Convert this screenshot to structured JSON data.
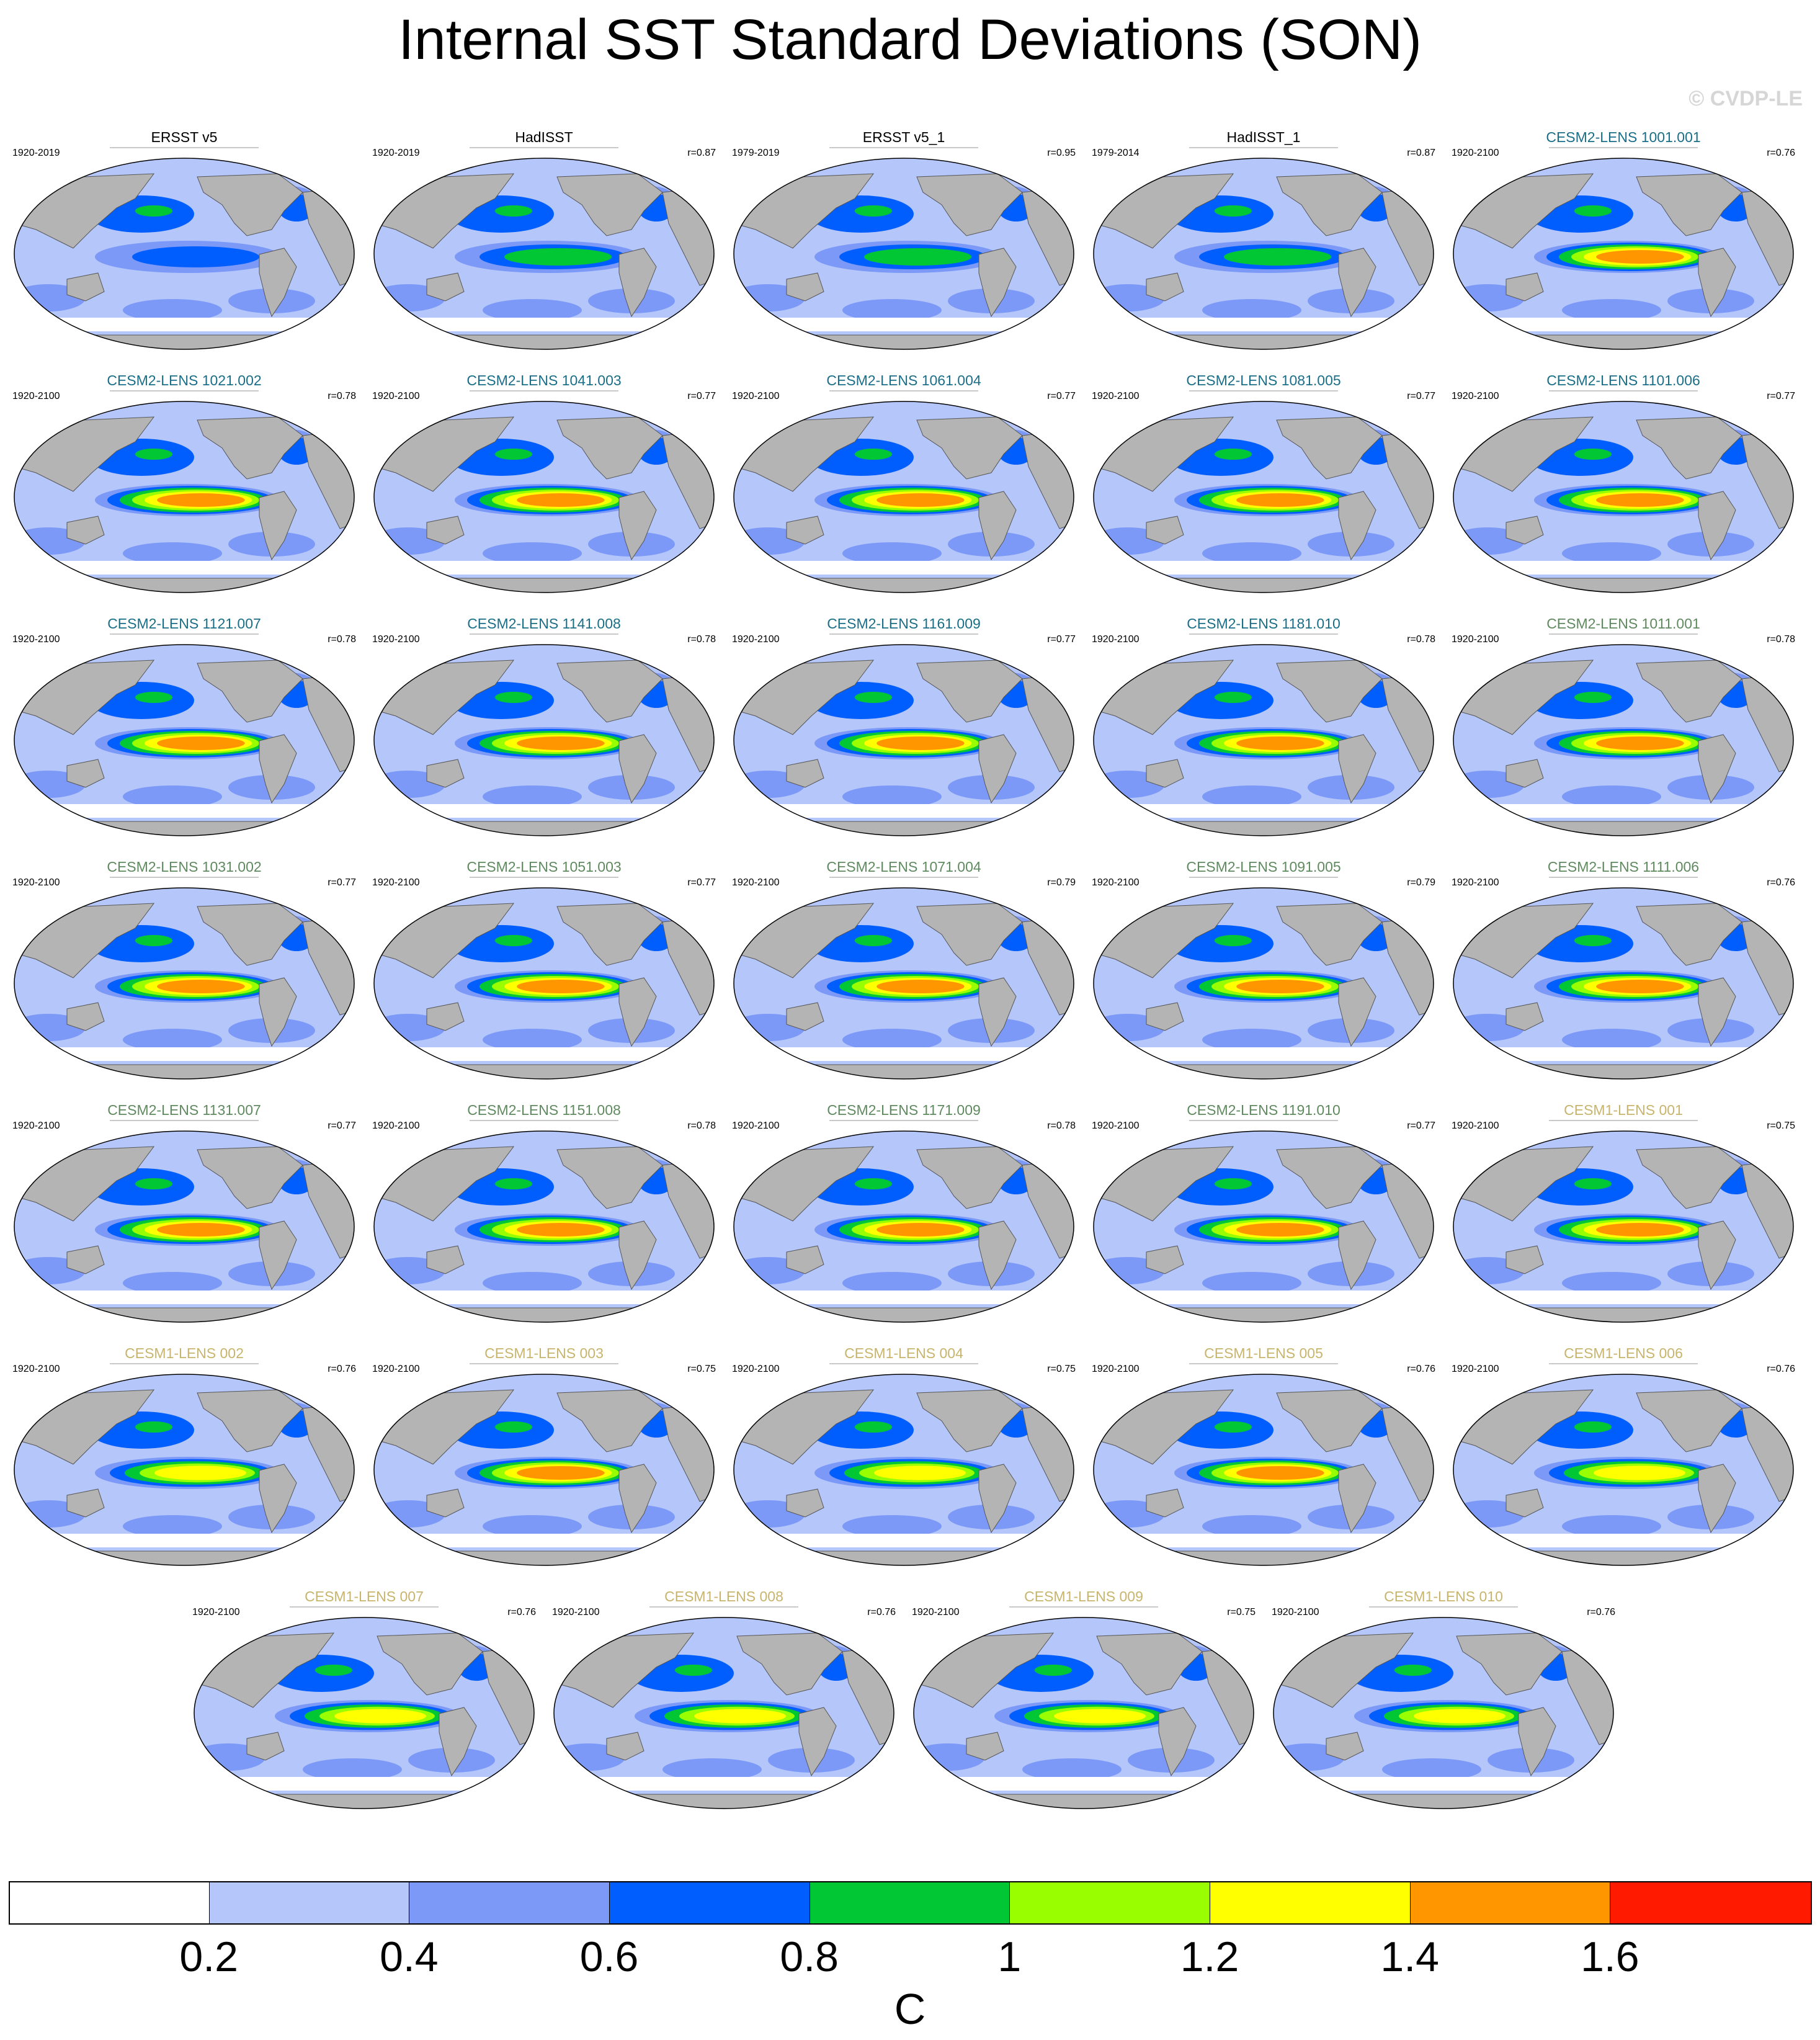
{
  "title": "Internal SST Standard Deviations (SON)",
  "credit": "© CVDP-LE",
  "colors": {
    "obs_title": "#000000",
    "cesm2_a_title": "#1a6e88",
    "cesm2_b_title": "#5f8a5f",
    "cesm1_title": "#c8b46c",
    "land": "#b4b4b4",
    "coast": "#555555"
  },
  "panels": [
    {
      "title": "ERSST v5",
      "years": "1920-2019",
      "r": "",
      "group": "obs",
      "peak": 0.85
    },
    {
      "title": "HadISST",
      "years": "1920-2019",
      "r": "r=0.87",
      "group": "obs",
      "peak": 0.9
    },
    {
      "title": "ERSST v5_1",
      "years": "1979-2019",
      "r": "r=0.95",
      "group": "obs",
      "peak": 0.95
    },
    {
      "title": "HadISST_1",
      "years": "1979-2014",
      "r": "r=0.87",
      "group": "obs",
      "peak": 0.95
    },
    {
      "title": "CESM2-LENS 1001.001",
      "years": "1920-2100",
      "r": "r=0.76",
      "group": "cesm2a",
      "peak": 1.65
    },
    {
      "title": "CESM2-LENS 1021.002",
      "years": "1920-2100",
      "r": "r=0.78",
      "group": "cesm2a",
      "peak": 1.65
    },
    {
      "title": "CESM2-LENS 1041.003",
      "years": "1920-2100",
      "r": "r=0.77",
      "group": "cesm2a",
      "peak": 1.65
    },
    {
      "title": "CESM2-LENS 1061.004",
      "years": "1920-2100",
      "r": "r=0.77",
      "group": "cesm2a",
      "peak": 1.65
    },
    {
      "title": "CESM2-LENS 1081.005",
      "years": "1920-2100",
      "r": "r=0.77",
      "group": "cesm2a",
      "peak": 1.65
    },
    {
      "title": "CESM2-LENS 1101.006",
      "years": "1920-2100",
      "r": "r=0.77",
      "group": "cesm2a",
      "peak": 1.65
    },
    {
      "title": "CESM2-LENS 1121.007",
      "years": "1920-2100",
      "r": "r=0.78",
      "group": "cesm2a",
      "peak": 1.65
    },
    {
      "title": "CESM2-LENS 1141.008",
      "years": "1920-2100",
      "r": "r=0.78",
      "group": "cesm2a",
      "peak": 1.65
    },
    {
      "title": "CESM2-LENS 1161.009",
      "years": "1920-2100",
      "r": "r=0.77",
      "group": "cesm2a",
      "peak": 1.65
    },
    {
      "title": "CESM2-LENS 1181.010",
      "years": "1920-2100",
      "r": "r=0.78",
      "group": "cesm2a",
      "peak": 1.65
    },
    {
      "title": "CESM2-LENS 1011.001",
      "years": "1920-2100",
      "r": "r=0.78",
      "group": "cesm2b",
      "peak": 1.65
    },
    {
      "title": "CESM2-LENS 1031.002",
      "years": "1920-2100",
      "r": "r=0.77",
      "group": "cesm2b",
      "peak": 1.65
    },
    {
      "title": "CESM2-LENS 1051.003",
      "years": "1920-2100",
      "r": "r=0.77",
      "group": "cesm2b",
      "peak": 1.65
    },
    {
      "title": "CESM2-LENS 1071.004",
      "years": "1920-2100",
      "r": "r=0.79",
      "group": "cesm2b",
      "peak": 1.65
    },
    {
      "title": "CESM2-LENS 1091.005",
      "years": "1920-2100",
      "r": "r=0.79",
      "group": "cesm2b",
      "peak": 1.65
    },
    {
      "title": "CESM2-LENS 1111.006",
      "years": "1920-2100",
      "r": "r=0.76",
      "group": "cesm2b",
      "peak": 1.65
    },
    {
      "title": "CESM2-LENS 1131.007",
      "years": "1920-2100",
      "r": "r=0.77",
      "group": "cesm2b",
      "peak": 1.65
    },
    {
      "title": "CESM2-LENS 1151.008",
      "years": "1920-2100",
      "r": "r=0.78",
      "group": "cesm2b",
      "peak": 1.65
    },
    {
      "title": "CESM2-LENS 1171.009",
      "years": "1920-2100",
      "r": "r=0.78",
      "group": "cesm2b",
      "peak": 1.65
    },
    {
      "title": "CESM2-LENS 1191.010",
      "years": "1920-2100",
      "r": "r=0.77",
      "group": "cesm2b",
      "peak": 1.65
    },
    {
      "title": "CESM1-LENS 001",
      "years": "1920-2100",
      "r": "r=0.75",
      "group": "cesm1",
      "peak": 1.65
    },
    {
      "title": "CESM1-LENS 002",
      "years": "1920-2100",
      "r": "r=0.76",
      "group": "cesm1",
      "peak": 1.45
    },
    {
      "title": "CESM1-LENS 003",
      "years": "1920-2100",
      "r": "r=0.75",
      "group": "cesm1",
      "peak": 1.65
    },
    {
      "title": "CESM1-LENS 004",
      "years": "1920-2100",
      "r": "r=0.75",
      "group": "cesm1",
      "peak": 1.45
    },
    {
      "title": "CESM1-LENS 005",
      "years": "1920-2100",
      "r": "r=0.76",
      "group": "cesm1",
      "peak": 1.65
    },
    {
      "title": "CESM1-LENS 006",
      "years": "1920-2100",
      "r": "r=0.76",
      "group": "cesm1",
      "peak": 1.45
    },
    {
      "title": "CESM1-LENS 007",
      "years": "1920-2100",
      "r": "r=0.76",
      "group": "cesm1",
      "peak": 1.45
    },
    {
      "title": "CESM1-LENS 008",
      "years": "1920-2100",
      "r": "r=0.76",
      "group": "cesm1",
      "peak": 1.45
    },
    {
      "title": "CESM1-LENS 009",
      "years": "1920-2100",
      "r": "r=0.75",
      "group": "cesm1",
      "peak": 1.45
    },
    {
      "title": "CESM1-LENS 010",
      "years": "1920-2100",
      "r": "r=0.76",
      "group": "cesm1",
      "peak": 1.45
    }
  ],
  "colorbar": {
    "colors": [
      "#ffffff",
      "#b4c6fa",
      "#7c99f7",
      "#005eff",
      "#00c733",
      "#99ff00",
      "#ffff00",
      "#ff9600",
      "#ff1a00"
    ],
    "ticks": [
      "0.2",
      "0.4",
      "0.6",
      "0.8",
      "1",
      "1.2",
      "1.4",
      "1.6"
    ],
    "units": "C"
  }
}
